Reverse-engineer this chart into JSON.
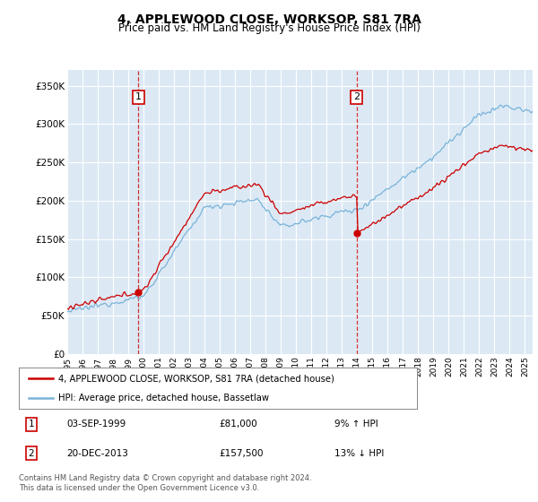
{
  "title": "4, APPLEWOOD CLOSE, WORKSOP, S81 7RA",
  "subtitle": "Price paid vs. HM Land Registry's House Price Index (HPI)",
  "ylim": [
    0,
    370000
  ],
  "yticks": [
    0,
    50000,
    100000,
    150000,
    200000,
    250000,
    300000,
    350000
  ],
  "ytick_labels": [
    "£0",
    "£50K",
    "£100K",
    "£150K",
    "£200K",
    "£250K",
    "£300K",
    "£350K"
  ],
  "bg_color": "#dce9f5",
  "grid_color": "#ffffff",
  "hpi_color": "#7ab3d8",
  "price_color": "#cc0000",
  "sale1_date_x": 1999.67,
  "sale1_price": 81000,
  "sale2_date_x": 2013.97,
  "sale2_price": 157500,
  "legend_label1": "4, APPLEWOOD CLOSE, WORKSOP, S81 7RA (detached house)",
  "legend_label2": "HPI: Average price, detached house, Bassetlaw",
  "sale1_date_str": "03-SEP-1999",
  "sale1_price_str": "£81,000",
  "sale1_hpi_str": "9% ↑ HPI",
  "sale2_date_str": "20-DEC-2013",
  "sale2_price_str": "£157,500",
  "sale2_hpi_str": "13% ↓ HPI",
  "footer": "Contains HM Land Registry data © Crown copyright and database right 2024.\nThis data is licensed under the Open Government Licence v3.0.",
  "xmin": 1995.0,
  "xmax": 2025.5
}
